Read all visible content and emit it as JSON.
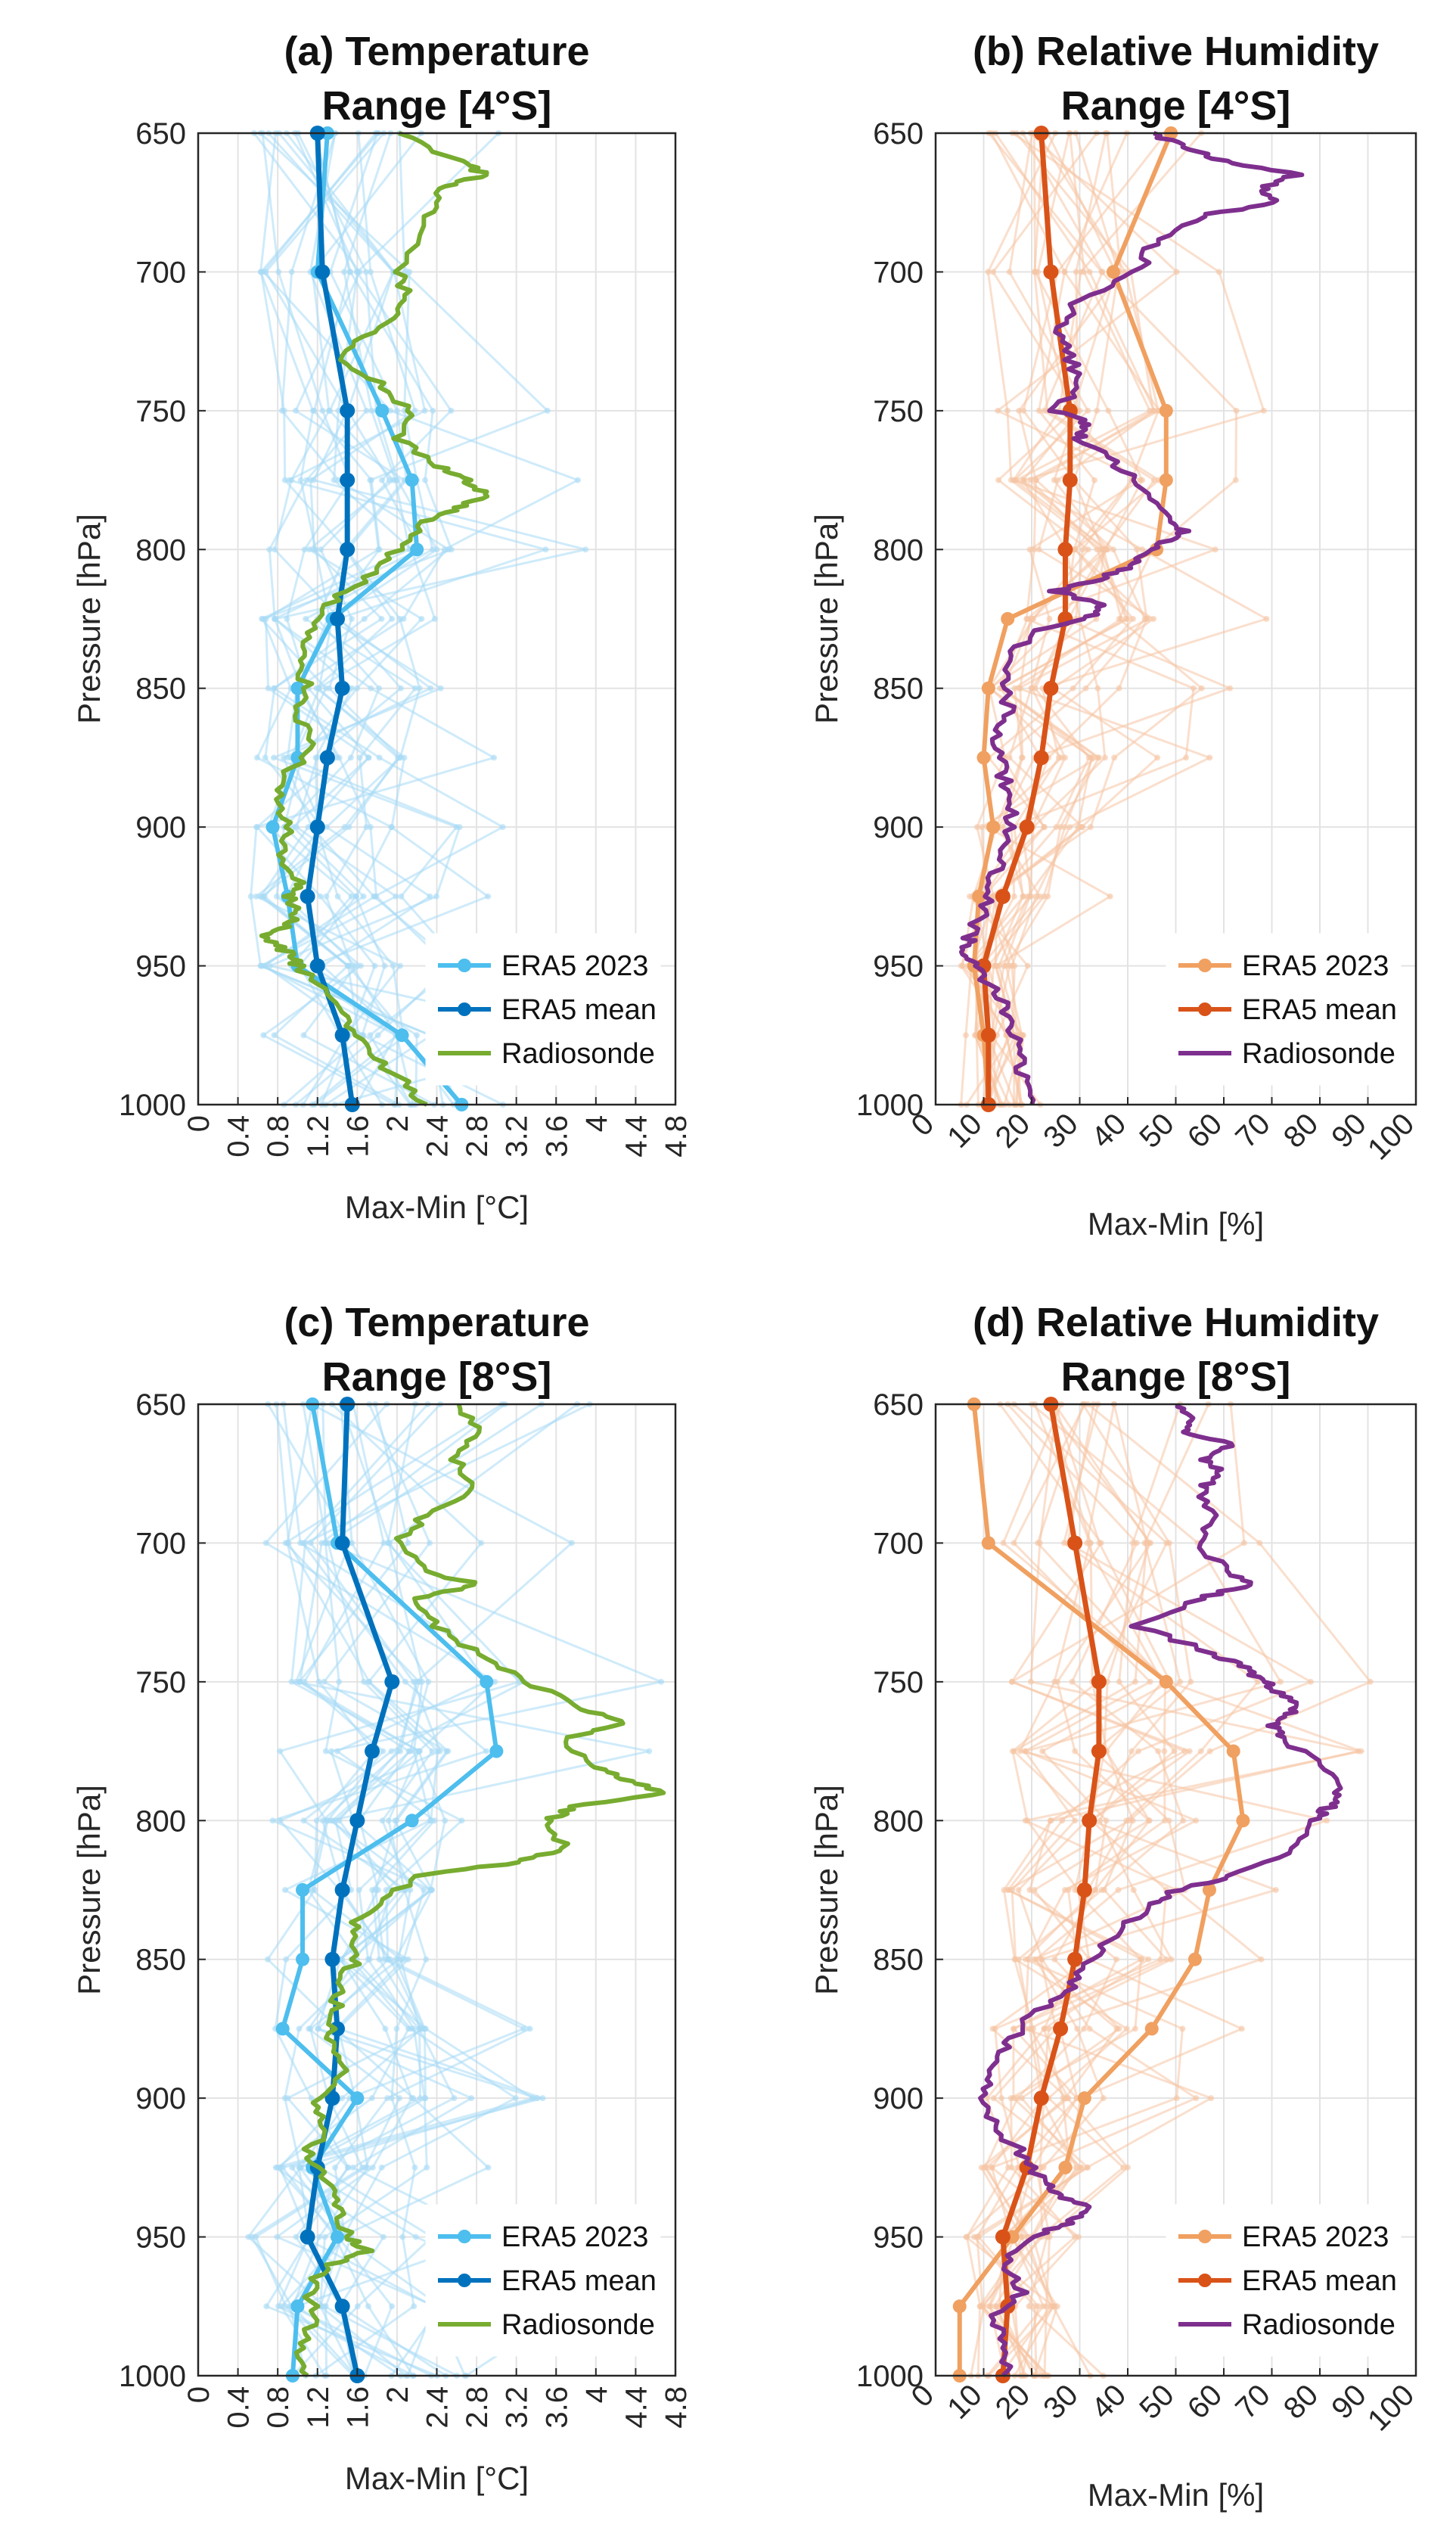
{
  "chart_data": [
    {
      "id": "a",
      "type": "line",
      "title_lines": [
        "(a) Temperature",
        "Range [4°S]"
      ],
      "xlabel": "Max-Min [°C]",
      "ylabel": "Pressure [hPa]",
      "xlim": [
        0,
        4.8
      ],
      "xticks": [
        0,
        0.4,
        0.8,
        1.2,
        1.6,
        2,
        2.4,
        2.8,
        3.2,
        3.6,
        4,
        4.4,
        4.8
      ],
      "xtick_labels": [
        "0",
        "0.4",
        "0.8",
        "1.2",
        "1.6",
        "2",
        "2.4",
        "2.8",
        "3.2",
        "3.6",
        "4",
        "4.4",
        "4.8"
      ],
      "ylim": [
        650,
        1000
      ],
      "yticks": [
        650,
        700,
        750,
        800,
        850,
        900,
        950,
        1000
      ],
      "ytick_labels": [
        "650",
        "700",
        "750",
        "800",
        "850",
        "900",
        "950",
        "1000"
      ],
      "levels": [
        650,
        700,
        750,
        775,
        800,
        825,
        850,
        875,
        900,
        925,
        950,
        975,
        1000
      ],
      "colors": {
        "year": "#4dbeee",
        "mean": "#0072bd",
        "sonde": "#77ac30",
        "background": "#a8daf5"
      },
      "legend": {
        "position": "bottom-right",
        "entries": [
          "ERA5 2023",
          "ERA5 mean",
          "Radiosonde"
        ]
      },
      "series": [
        {
          "name": "ERA5 2023",
          "x": [
            1.3,
            1.2,
            1.85,
            2.15,
            2.2,
            1.35,
            1.0,
            1.0,
            0.75,
            0.9,
            1.0,
            2.05,
            2.65
          ]
        },
        {
          "name": "ERA5 mean",
          "x": [
            1.2,
            1.25,
            1.5,
            1.5,
            1.5,
            1.4,
            1.45,
            1.3,
            1.2,
            1.1,
            1.2,
            1.45,
            1.55
          ]
        },
        {
          "name": "Radiosonde",
          "p": [
            650,
            660,
            665,
            670,
            680,
            700,
            710,
            720,
            730,
            740,
            750,
            760,
            770,
            775,
            780,
            785,
            790,
            800,
            810,
            820,
            830,
            840,
            850,
            860,
            870,
            880,
            890,
            900,
            910,
            920,
            925,
            930,
            935,
            940,
            945,
            950,
            960,
            970,
            980,
            990,
            1000
          ],
          "x": [
            2.0,
            2.6,
            2.9,
            2.4,
            2.3,
            2.0,
            2.1,
            1.8,
            1.4,
            1.8,
            2.1,
            2.0,
            2.4,
            2.7,
            2.9,
            2.6,
            2.3,
            2.0,
            1.7,
            1.3,
            1.1,
            1.0,
            1.1,
            1.0,
            1.2,
            0.9,
            0.8,
            0.9,
            0.8,
            1.0,
            0.9,
            1.0,
            0.9,
            0.65,
            0.9,
            1.0,
            1.3,
            1.5,
            1.7,
            2.0,
            2.3
          ]
        }
      ]
    },
    {
      "id": "b",
      "type": "line",
      "title_lines": [
        "(b) Relative Humidity",
        "Range [4°S]"
      ],
      "xlabel": "Max-Min [%]",
      "ylabel": "Pressure [hPa]",
      "xlim": [
        0,
        100
      ],
      "xticks": [
        0,
        10,
        20,
        30,
        40,
        50,
        60,
        70,
        80,
        90,
        100
      ],
      "xtick_labels": [
        "0",
        "10",
        "20",
        "30",
        "40",
        "50",
        "60",
        "70",
        "80",
        "90",
        "100"
      ],
      "ylim": [
        650,
        1000
      ],
      "yticks": [
        650,
        700,
        750,
        800,
        850,
        900,
        950,
        1000
      ],
      "ytick_labels": [
        "650",
        "700",
        "750",
        "800",
        "850",
        "900",
        "950",
        "1000"
      ],
      "levels": [
        650,
        700,
        750,
        775,
        800,
        825,
        850,
        875,
        900,
        925,
        950,
        975,
        1000
      ],
      "colors": {
        "year": "#f0a060",
        "mean": "#d95319",
        "sonde": "#7e2f8e",
        "background": "#f5c4a4"
      },
      "legend": {
        "position": "bottom-right",
        "entries": [
          "ERA5 2023",
          "ERA5 mean",
          "Radiosonde"
        ]
      },
      "series": [
        {
          "name": "ERA5 2023",
          "x": [
            49,
            37,
            48,
            48,
            46,
            15,
            11,
            10,
            12,
            9,
            8,
            10,
            11
          ]
        },
        {
          "name": "ERA5 mean",
          "x": [
            22,
            24,
            28,
            28,
            27,
            27,
            24,
            22,
            19,
            14,
            10,
            11,
            11
          ]
        },
        {
          "name": "Radiosonde",
          "p": [
            650,
            655,
            660,
            665,
            670,
            675,
            680,
            690,
            700,
            710,
            720,
            730,
            740,
            750,
            755,
            760,
            770,
            780,
            790,
            795,
            800,
            805,
            810,
            815,
            820,
            825,
            830,
            840,
            850,
            860,
            870,
            880,
            890,
            900,
            910,
            920,
            930,
            940,
            945,
            950,
            960,
            970,
            980,
            990,
            1000
          ],
          "x": [
            45,
            52,
            60,
            75,
            68,
            70,
            55,
            45,
            42,
            30,
            25,
            28,
            30,
            25,
            32,
            30,
            38,
            44,
            50,
            52,
            44,
            42,
            35,
            25,
            35,
            32,
            20,
            15,
            15,
            15,
            12,
            14,
            15,
            16,
            14,
            12,
            10,
            7,
            6,
            8,
            13,
            15,
            17,
            18,
            20
          ]
        }
      ]
    },
    {
      "id": "c",
      "type": "line",
      "title_lines": [
        "(c) Temperature",
        "Range [8°S]"
      ],
      "xlabel": "Max-Min [°C]",
      "ylabel": "Pressure [hPa]",
      "xlim": [
        0,
        4.8
      ],
      "xticks": [
        0,
        0.4,
        0.8,
        1.2,
        1.6,
        2,
        2.4,
        2.8,
        3.2,
        3.6,
        4,
        4.4,
        4.8
      ],
      "xtick_labels": [
        "0",
        "0.4",
        "0.8",
        "1.2",
        "1.6",
        "2",
        "2.4",
        "2.8",
        "3.2",
        "3.6",
        "4",
        "4.4",
        "4.8"
      ],
      "ylim": [
        650,
        1000
      ],
      "yticks": [
        650,
        700,
        750,
        800,
        850,
        900,
        950,
        1000
      ],
      "ytick_labels": [
        "650",
        "700",
        "750",
        "800",
        "850",
        "900",
        "950",
        "1000"
      ],
      "levels": [
        650,
        700,
        750,
        775,
        800,
        825,
        850,
        875,
        900,
        925,
        950,
        975,
        1000
      ],
      "colors": {
        "year": "#4dbeee",
        "mean": "#0072bd",
        "sonde": "#77ac30",
        "background": "#a8daf5"
      },
      "legend": {
        "position": "bottom-right",
        "entries": [
          "ERA5 2023",
          "ERA5 mean",
          "Radiosonde"
        ]
      },
      "series": [
        {
          "name": "ERA5 2023",
          "x": [
            1.15,
            1.4,
            2.9,
            3.0,
            2.15,
            1.05,
            1.05,
            0.85,
            1.6,
            1.15,
            1.4,
            1.0,
            0.95
          ]
        },
        {
          "name": "ERA5 mean",
          "x": [
            1.5,
            1.45,
            1.95,
            1.75,
            1.6,
            1.45,
            1.35,
            1.4,
            1.35,
            1.2,
            1.1,
            1.45,
            1.6
          ]
        },
        {
          "name": "Radiosonde",
          "p": [
            650,
            660,
            670,
            680,
            690,
            700,
            710,
            715,
            720,
            730,
            740,
            750,
            760,
            765,
            770,
            780,
            785,
            790,
            795,
            800,
            810,
            815,
            820,
            830,
            840,
            850,
            860,
            870,
            880,
            890,
            900,
            910,
            920,
            930,
            940,
            950,
            955,
            960,
            970,
            980,
            990,
            1000
          ],
          "x": [
            2.6,
            2.8,
            2.6,
            2.8,
            2.3,
            2.0,
            2.3,
            2.8,
            2.2,
            2.4,
            2.8,
            3.3,
            3.9,
            4.3,
            3.7,
            3.9,
            4.3,
            4.7,
            3.8,
            3.5,
            3.7,
            3.2,
            2.2,
            1.8,
            1.5,
            1.6,
            1.4,
            1.4,
            1.3,
            1.5,
            1.2,
            1.3,
            1.1,
            1.3,
            1.4,
            1.5,
            1.7,
            1.3,
            1.1,
            1.2,
            1.0,
            1.1
          ]
        }
      ]
    },
    {
      "id": "d",
      "type": "line",
      "title_lines": [
        "(d) Relative Humidity",
        "Range [8°S]"
      ],
      "xlabel": "Max-Min [%]",
      "ylabel": "Pressure [hPa]",
      "xlim": [
        0,
        100
      ],
      "xticks": [
        0,
        10,
        20,
        30,
        40,
        50,
        60,
        70,
        80,
        90,
        100
      ],
      "xtick_labels": [
        "0",
        "10",
        "20",
        "30",
        "40",
        "50",
        "60",
        "70",
        "80",
        "90",
        "100"
      ],
      "ylim": [
        650,
        1000
      ],
      "yticks": [
        650,
        700,
        750,
        800,
        850,
        900,
        950,
        1000
      ],
      "ytick_labels": [
        "650",
        "700",
        "750",
        "800",
        "850",
        "900",
        "950",
        "1000"
      ],
      "levels": [
        650,
        700,
        750,
        775,
        800,
        825,
        850,
        875,
        900,
        925,
        950,
        975,
        1000
      ],
      "colors": {
        "year": "#f0a060",
        "mean": "#d95319",
        "sonde": "#7e2f8e",
        "background": "#f5c4a4"
      },
      "legend": {
        "position": "bottom-right",
        "entries": [
          "ERA5 2023",
          "ERA5 mean",
          "Radiosonde"
        ]
      },
      "series": [
        {
          "name": "ERA5 2023",
          "x": [
            8,
            11,
            48,
            62,
            64,
            57,
            54,
            45,
            31,
            27,
            16,
            5,
            5
          ]
        },
        {
          "name": "ERA5 mean",
          "x": [
            24,
            29,
            34,
            34,
            32,
            31,
            29,
            26,
            22,
            19,
            14,
            15,
            14
          ]
        },
        {
          "name": "Radiosonde",
          "p": [
            650,
            655,
            660,
            665,
            670,
            675,
            680,
            690,
            700,
            710,
            715,
            720,
            730,
            740,
            745,
            750,
            755,
            760,
            765,
            770,
            780,
            790,
            795,
            800,
            810,
            820,
            825,
            830,
            840,
            850,
            860,
            870,
            880,
            890,
            900,
            910,
            920,
            930,
            935,
            940,
            945,
            950,
            960,
            970,
            980,
            990,
            1000
          ],
          "x": [
            50,
            55,
            52,
            62,
            56,
            60,
            55,
            58,
            55,
            60,
            65,
            55,
            42,
            58,
            65,
            68,
            73,
            75,
            70,
            72,
            80,
            84,
            82,
            78,
            75,
            62,
            50,
            45,
            38,
            32,
            28,
            20,
            15,
            12,
            10,
            12,
            18,
            22,
            26,
            32,
            28,
            20,
            14,
            18,
            12,
            15,
            14
          ]
        }
      ]
    }
  ]
}
